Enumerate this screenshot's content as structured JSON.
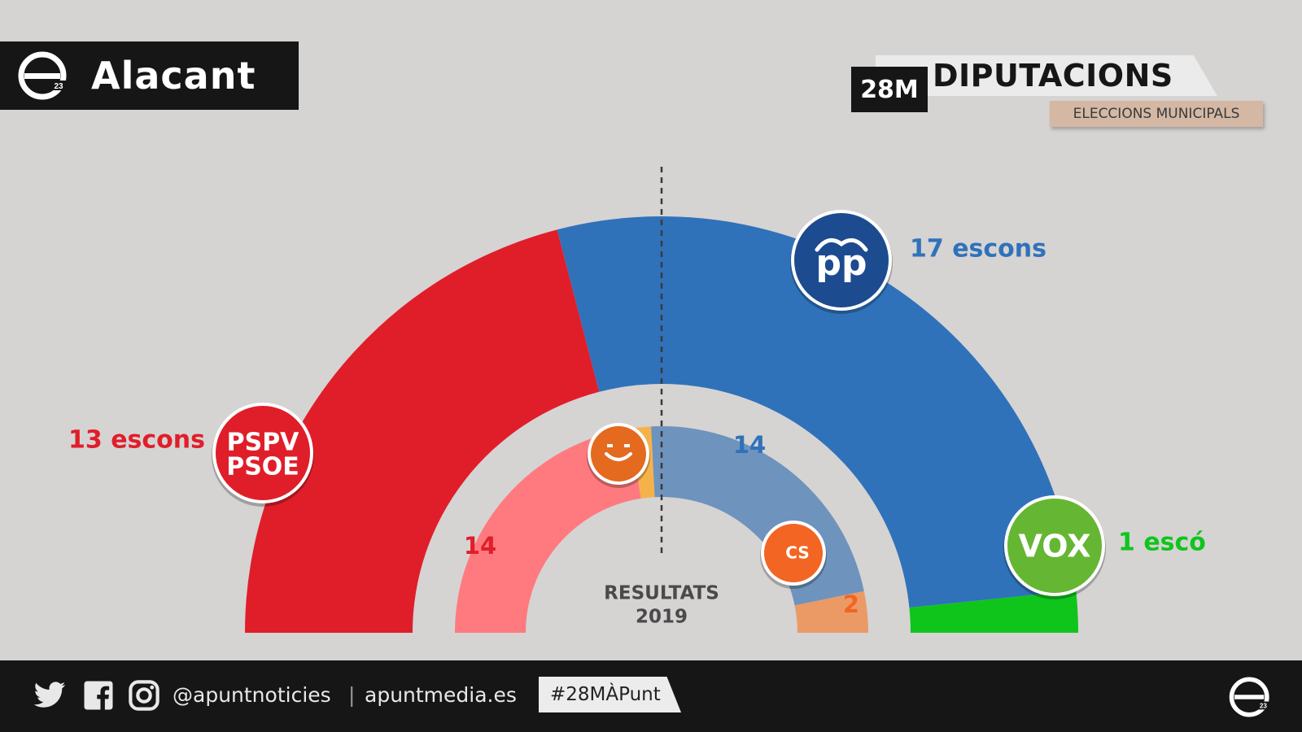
{
  "header": {
    "region": "Alacant",
    "badge": "28M",
    "title": "DIPUTACIONS",
    "subtitle": "ELECCIONS MUNICIPALS"
  },
  "colors": {
    "background": "#d6d3d3",
    "dark": "#161616",
    "pspv_psoe": "#e01e2a",
    "pp": "#2f72ba",
    "vox": "#0fc51c",
    "pp_logo": "#1d4b8f",
    "vox_logo": "#65b733",
    "cs": "#f26522",
    "compromis": "#e36a1f",
    "prev_psoe": "#ff7a7e",
    "prev_compromis": "#f5b24a",
    "prev_pp": "#6e93bd",
    "prev_cs": "#eb9a66"
  },
  "chart_data": [
    {
      "type": "pie",
      "variant": "half-donut",
      "title": "",
      "total_seats": 31,
      "series": [
        {
          "name": "PSPV PSOE",
          "value": 13,
          "label": "13 escons",
          "color": "#e01e2a",
          "logo": "PSPV\nPSOE"
        },
        {
          "name": "PP",
          "value": 17,
          "label": "17 escons",
          "color": "#2f72ba",
          "logo": "pp"
        },
        {
          "name": "VOX",
          "value": 1,
          "label": "1 escó",
          "color": "#0fc51c",
          "logo": "VOX"
        }
      ]
    },
    {
      "type": "pie",
      "variant": "half-donut",
      "title": "RESULTATS 2019",
      "total_seats": 31,
      "series": [
        {
          "name": "PSPV PSOE",
          "value": 14,
          "label": "14",
          "color": "#ff7a7e"
        },
        {
          "name": "Compromís",
          "value": 1,
          "label": "",
          "color": "#f5b24a",
          "logo": "smile-icon"
        },
        {
          "name": "PP",
          "value": 14,
          "label": "14",
          "color": "#6e93bd"
        },
        {
          "name": "Cs",
          "value": 2,
          "label": "2",
          "color": "#eb9a66",
          "logo": "Cs"
        }
      ]
    }
  ],
  "majority_line": true,
  "footer": {
    "handle": "@apuntnoticies",
    "separator": "|",
    "site": "apuntmedia.es",
    "hashtag": "#28MÀPunt",
    "icons": [
      "twitter-icon",
      "facebook-icon",
      "instagram-icon"
    ]
  }
}
